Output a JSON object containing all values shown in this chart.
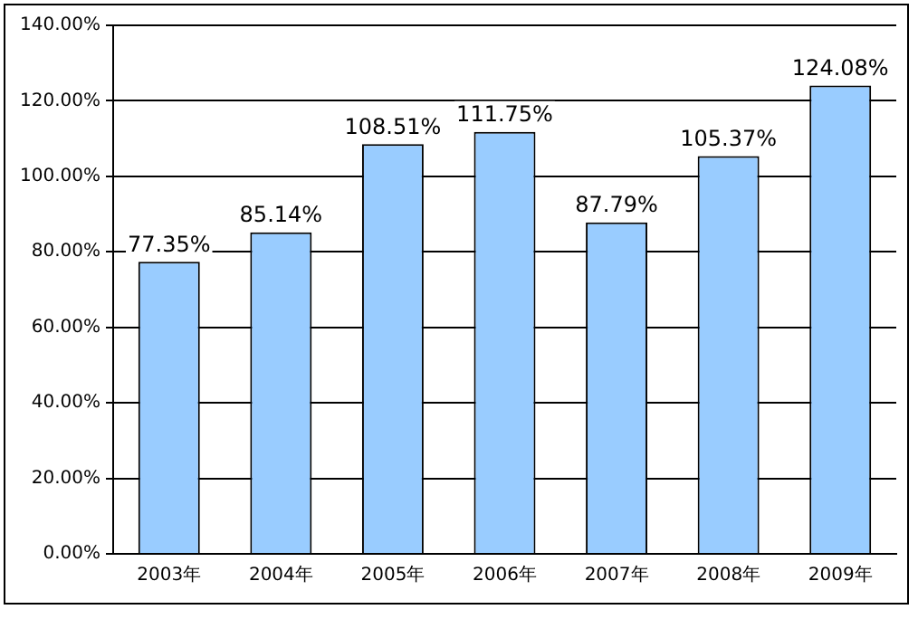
{
  "chart_data": {
    "type": "bar",
    "categories": [
      "2003年",
      "2004年",
      "2005年",
      "2006年",
      "2007年",
      "2008年",
      "2009年"
    ],
    "values": [
      77.35,
      85.14,
      108.51,
      111.75,
      87.79,
      105.37,
      124.08
    ],
    "value_labels": [
      "77.35%",
      "85.14%",
      "108.51%",
      "111.75%",
      "87.79%",
      "105.37%",
      "124.08%"
    ],
    "color": "#99ccff",
    "ylim": [
      0,
      140
    ],
    "yticks": [
      {
        "value": 0,
        "label": "0.00%"
      },
      {
        "value": 20,
        "label": "20.00%"
      },
      {
        "value": 40,
        "label": "40.00%"
      },
      {
        "value": 60,
        "label": "60.00%"
      },
      {
        "value": 80,
        "label": "80.00%"
      },
      {
        "value": 100,
        "label": "100.00%"
      },
      {
        "value": 120,
        "label": "120.00%"
      },
      {
        "value": 140,
        "label": "140.00%"
      }
    ],
    "grid": "y",
    "legend": false
  }
}
